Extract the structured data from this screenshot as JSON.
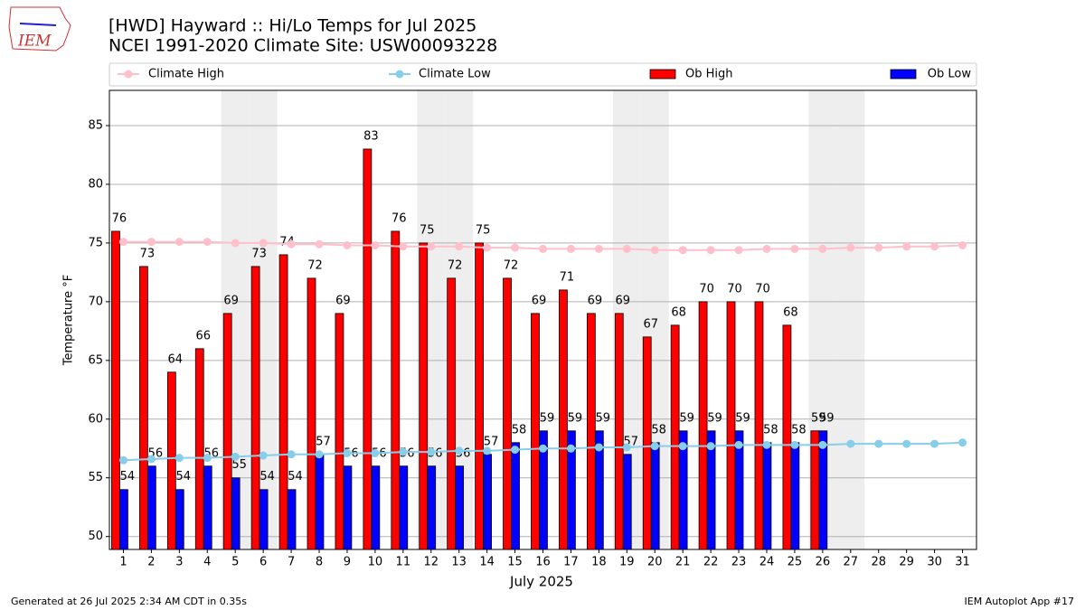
{
  "logo": "IEM",
  "footer_left": "Generated at 26 Jul 2025 2:34 AM CDT in 0.35s",
  "footer_right": "IEM Autoplot App #17",
  "chart_data": {
    "type": "bar",
    "title": "[HWD] Hayward :: Hi/Lo Temps for Jul 2025",
    "subtitle": "NCEI 1991-2020 Climate Site: USW00093228",
    "xlabel": "July 2025",
    "ylabel": "Temperature °F",
    "x": [
      1,
      2,
      3,
      4,
      5,
      6,
      7,
      8,
      9,
      10,
      11,
      12,
      13,
      14,
      15,
      16,
      17,
      18,
      19,
      20,
      21,
      22,
      23,
      24,
      25,
      26,
      27,
      28,
      29,
      30,
      31
    ],
    "xlim": [
      0.5,
      31.5
    ],
    "ylim": [
      48.9,
      88
    ],
    "yticks": [
      50,
      55,
      60,
      65,
      70,
      75,
      80,
      85
    ],
    "grid": true,
    "shaded_days": [
      5,
      6,
      12,
      13,
      19,
      20,
      26,
      27
    ],
    "shade_color": "#eeeeee",
    "series": [
      {
        "name": "Climate High",
        "type": "line",
        "color": "#ffc0cb",
        "values": [
          75.1,
          75.1,
          75.1,
          75.1,
          75.0,
          75.0,
          74.9,
          74.9,
          74.8,
          74.8,
          74.7,
          74.7,
          74.7,
          74.6,
          74.6,
          74.5,
          74.5,
          74.5,
          74.5,
          74.4,
          74.4,
          74.4,
          74.4,
          74.5,
          74.5,
          74.5,
          74.6,
          74.6,
          74.7,
          74.7,
          74.8
        ]
      },
      {
        "name": "Climate Low",
        "type": "line",
        "color": "#87ceeb",
        "values": [
          56.5,
          56.6,
          56.7,
          56.7,
          56.8,
          56.9,
          57.0,
          57.0,
          57.1,
          57.1,
          57.2,
          57.2,
          57.3,
          57.3,
          57.4,
          57.5,
          57.5,
          57.6,
          57.6,
          57.7,
          57.7,
          57.7,
          57.8,
          57.8,
          57.8,
          57.8,
          57.9,
          57.9,
          57.9,
          57.9,
          58.0
        ]
      },
      {
        "name": "Ob High",
        "type": "bar",
        "color": "#ff0000",
        "values": [
          76,
          73,
          64,
          66,
          69,
          73,
          74,
          72,
          69,
          83,
          76,
          75,
          72,
          75,
          72,
          69,
          71,
          69,
          69,
          67,
          68,
          70,
          70,
          70,
          68,
          59,
          null,
          null,
          null,
          null,
          null
        ]
      },
      {
        "name": "Ob Low",
        "type": "bar",
        "color": "#0000ff",
        "values": [
          54,
          56,
          54,
          56,
          55,
          54,
          54,
          57,
          56,
          56,
          56,
          56,
          56,
          57,
          58,
          59,
          59,
          59,
          57,
          58,
          59,
          59,
          59,
          58,
          58,
          59,
          null,
          null,
          null,
          null,
          null
        ]
      }
    ]
  }
}
